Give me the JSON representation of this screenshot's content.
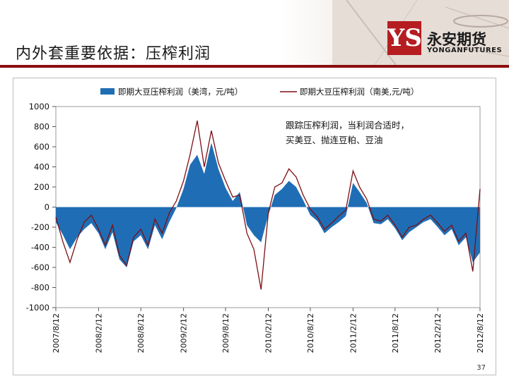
{
  "slide": {
    "title": "内外套重要依据：压榨利润",
    "page_number": "37"
  },
  "logo": {
    "mark": "YS",
    "name_cn": "永安期货",
    "name_en": "YONGANFUTURES"
  },
  "annotation": {
    "line1": "跟踪压榨利润，当利润合适时，",
    "line2": "买美豆、抛连豆粕、豆油"
  },
  "colors": {
    "area": "#1f6eb5",
    "line": "#7b0f14",
    "accent": "#8b0d10"
  },
  "chart_data": {
    "type": "area",
    "legend": [
      "即期大豆压榨利润（美湾，元/吨）",
      "即期大豆压榨利润（南美,元/吨）"
    ],
    "ylim": [
      -1000,
      1000
    ],
    "yticks": [
      1000,
      800,
      600,
      400,
      200,
      0,
      -200,
      -400,
      -600,
      -800,
      -1000
    ],
    "xtick_labels": [
      "2007/8/12",
      "2008/2/12",
      "2008/8/12",
      "2009/2/12",
      "2009/8/12",
      "2010/2/12",
      "2010/8/12",
      "2011/2/12",
      "2011/8/12",
      "2012/2/12",
      "2012/8/12"
    ],
    "x_range": [
      "2007/8/12",
      "2012/8/12"
    ],
    "series": [
      {
        "name": "即期大豆压榨利润（美湾，元/吨）",
        "type": "area",
        "x": [
          "2007/8/12",
          "2007/9/12",
          "2007/10/12",
          "2007/11/12",
          "2007/12/12",
          "2008/1/12",
          "2008/2/12",
          "2008/3/12",
          "2008/4/12",
          "2008/5/12",
          "2008/6/12",
          "2008/7/12",
          "2008/8/12",
          "2008/9/12",
          "2008/10/12",
          "2008/11/12",
          "2008/12/12",
          "2009/1/12",
          "2009/2/12",
          "2009/3/12",
          "2009/4/12",
          "2009/5/12",
          "2009/6/12",
          "2009/7/12",
          "2009/8/12",
          "2009/9/12",
          "2009/10/12",
          "2009/11/12",
          "2009/12/12",
          "2010/1/12",
          "2010/2/12",
          "2010/3/12",
          "2010/4/12",
          "2010/5/12",
          "2010/6/12",
          "2010/7/12",
          "2010/8/12",
          "2010/9/12",
          "2010/10/12",
          "2010/11/12",
          "2010/12/12",
          "2011/1/12",
          "2011/2/12",
          "2011/3/12",
          "2011/4/12",
          "2011/5/12",
          "2011/6/12",
          "2011/7/12",
          "2011/8/12",
          "2011/9/12",
          "2011/10/12",
          "2011/11/12",
          "2011/12/12",
          "2012/1/12",
          "2012/2/12",
          "2012/3/12",
          "2012/4/12",
          "2012/5/12",
          "2012/6/12",
          "2012/7/12",
          "2012/8/12"
        ],
        "values": [
          -150,
          -280,
          -420,
          -300,
          -220,
          -160,
          -260,
          -420,
          -250,
          -520,
          -600,
          -340,
          -280,
          -420,
          -180,
          -320,
          -150,
          -10,
          180,
          420,
          520,
          330,
          640,
          380,
          190,
          60,
          150,
          -180,
          -280,
          -350,
          -80,
          120,
          180,
          260,
          200,
          70,
          -80,
          -140,
          -260,
          -200,
          -150,
          -90,
          240,
          150,
          40,
          -160,
          -170,
          -120,
          -210,
          -330,
          -250,
          -200,
          -150,
          -120,
          -200,
          -280,
          -220,
          -380,
          -300,
          -550,
          -450
        ]
      },
      {
        "name": "即期大豆压榨利润（南美,元/吨）",
        "type": "line",
        "x": [
          "2007/8/12",
          "2007/9/12",
          "2007/10/12",
          "2007/11/12",
          "2007/12/12",
          "2008/1/12",
          "2008/2/12",
          "2008/3/12",
          "2008/4/12",
          "2008/5/12",
          "2008/6/12",
          "2008/7/12",
          "2008/8/12",
          "2008/9/12",
          "2008/10/12",
          "2008/11/12",
          "2008/12/12",
          "2009/1/12",
          "2009/2/12",
          "2009/3/12",
          "2009/4/12",
          "2009/5/12",
          "2009/6/12",
          "2009/7/12",
          "2009/8/12",
          "2009/9/12",
          "2009/10/12",
          "2009/11/12",
          "2009/12/12",
          "2010/1/12",
          "2010/2/12",
          "2010/3/12",
          "2010/4/12",
          "2010/5/12",
          "2010/6/12",
          "2010/7/12",
          "2010/8/12",
          "2010/9/12",
          "2010/10/12",
          "2010/11/12",
          "2010/12/12",
          "2011/1/12",
          "2011/2/12",
          "2011/3/12",
          "2011/4/12",
          "2011/5/12",
          "2011/6/12",
          "2011/7/12",
          "2011/8/12",
          "2011/9/12",
          "2011/10/12",
          "2011/11/12",
          "2011/12/12",
          "2012/1/12",
          "2012/2/12",
          "2012/3/12",
          "2012/4/12",
          "2012/5/12",
          "2012/6/12",
          "2012/7/12",
          "2012/8/12"
        ],
        "values": [
          -100,
          -350,
          -550,
          -320,
          -150,
          -80,
          -220,
          -380,
          -180,
          -480,
          -580,
          -300,
          -220,
          -380,
          -120,
          -260,
          -60,
          60,
          260,
          520,
          860,
          400,
          760,
          440,
          260,
          100,
          120,
          -260,
          -420,
          -820,
          -60,
          200,
          240,
          380,
          300,
          120,
          -20,
          -100,
          -220,
          -160,
          -90,
          -30,
          360,
          200,
          80,
          -120,
          -140,
          -80,
          -180,
          -300,
          -200,
          -180,
          -120,
          -80,
          -160,
          -240,
          -180,
          -340,
          -260,
          -640,
          180
        ]
      }
    ]
  }
}
